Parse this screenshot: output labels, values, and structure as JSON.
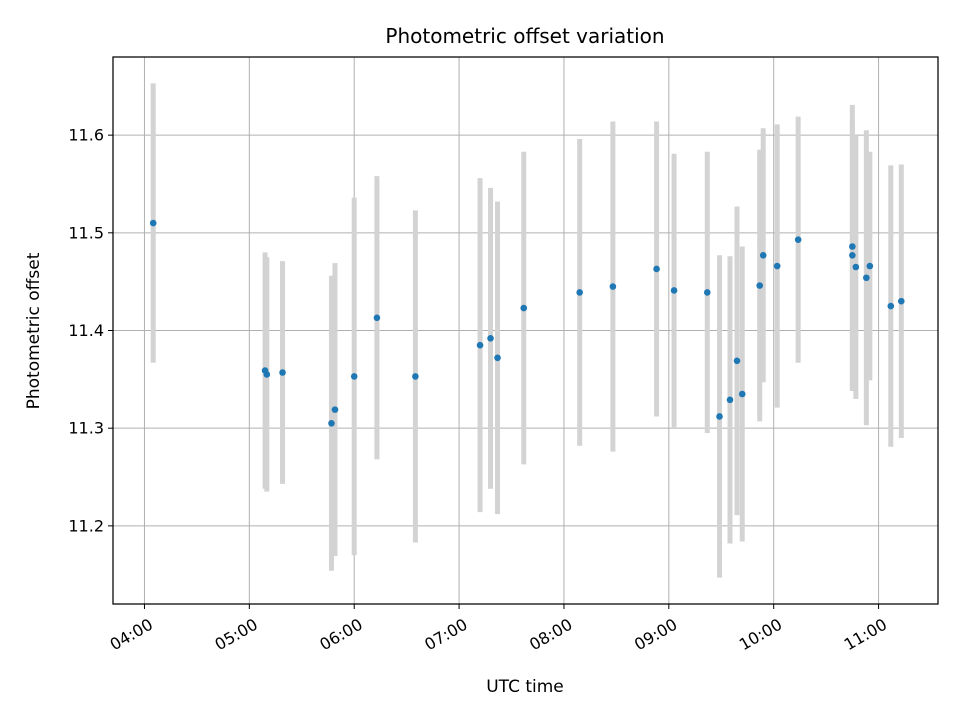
{
  "chart_data": {
    "type": "scatter",
    "title": "Photometric offset variation",
    "xlabel": "UTC time",
    "ylabel": "Photometric offset",
    "x_ticks": [
      "04:00",
      "05:00",
      "06:00",
      "07:00",
      "08:00",
      "09:00",
      "10:00",
      "11:00"
    ],
    "y_ticks": [
      "11.2",
      "11.3",
      "11.4",
      "11.5",
      "11.6"
    ],
    "xlim": [
      "03:42",
      "11:34"
    ],
    "ylim": [
      11.12,
      11.68
    ],
    "grid": true,
    "marker_color": "#1f77b4",
    "errorbar_color": "#d3d3d3",
    "series": [
      {
        "points": [
          {
            "x": "04:05",
            "y": 11.51,
            "err": 0.143
          },
          {
            "x": "05:09",
            "y": 11.359,
            "err": 0.121
          },
          {
            "x": "05:10",
            "y": 11.355,
            "err": 0.12
          },
          {
            "x": "05:19",
            "y": 11.357,
            "err": 0.114
          },
          {
            "x": "05:47",
            "y": 11.305,
            "err": 0.151
          },
          {
            "x": "05:49",
            "y": 11.319,
            "err": 0.15
          },
          {
            "x": "06:00",
            "y": 11.353,
            "err": 0.183
          },
          {
            "x": "06:13",
            "y": 11.413,
            "err": 0.145
          },
          {
            "x": "06:35",
            "y": 11.353,
            "err": 0.17
          },
          {
            "x": "07:12",
            "y": 11.385,
            "err": 0.171
          },
          {
            "x": "07:18",
            "y": 11.392,
            "err": 0.154
          },
          {
            "x": "07:22",
            "y": 11.372,
            "err": 0.16
          },
          {
            "x": "07:37",
            "y": 11.423,
            "err": 0.16
          },
          {
            "x": "08:09",
            "y": 11.439,
            "err": 0.157
          },
          {
            "x": "08:28",
            "y": 11.445,
            "err": 0.169
          },
          {
            "x": "08:53",
            "y": 11.463,
            "err": 0.151
          },
          {
            "x": "09:03",
            "y": 11.441,
            "err": 0.14
          },
          {
            "x": "09:22",
            "y": 11.439,
            "err": 0.144
          },
          {
            "x": "09:29",
            "y": 11.312,
            "err": 0.165
          },
          {
            "x": "09:35",
            "y": 11.329,
            "err": 0.147
          },
          {
            "x": "09:39",
            "y": 11.369,
            "err": 0.158
          },
          {
            "x": "09:42",
            "y": 11.335,
            "err": 0.151
          },
          {
            "x": "09:52",
            "y": 11.446,
            "err": 0.139
          },
          {
            "x": "09:54",
            "y": 11.477,
            "err": 0.13
          },
          {
            "x": "10:02",
            "y": 11.466,
            "err": 0.145
          },
          {
            "x": "10:14",
            "y": 11.493,
            "err": 0.126
          },
          {
            "x": "10:45",
            "y": 11.486,
            "err": 0.145
          },
          {
            "x": "10:45",
            "y": 11.477,
            "err": 0.139
          },
          {
            "x": "10:47",
            "y": 11.465,
            "err": 0.135
          },
          {
            "x": "10:53",
            "y": 11.454,
            "err": 0.151
          },
          {
            "x": "10:55",
            "y": 11.466,
            "err": 0.117
          },
          {
            "x": "11:07",
            "y": 11.425,
            "err": 0.144
          },
          {
            "x": "11:13",
            "y": 11.43,
            "err": 0.14
          }
        ]
      }
    ]
  }
}
